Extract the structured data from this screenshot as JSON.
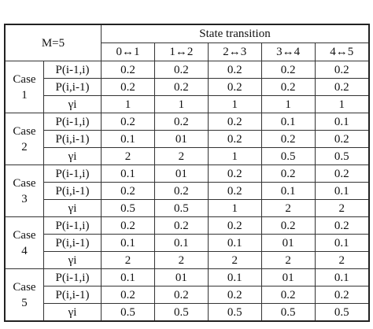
{
  "table": {
    "corner": "M=5",
    "group": "State transition",
    "columns": [
      "0↔1",
      "1↔2",
      "2↔3",
      "3↔4",
      "4↔5"
    ],
    "cases": [
      {
        "label": "Case 1",
        "rows": [
          {
            "label": "P(i-1,i)",
            "values": [
              "0.2",
              "0.2",
              "0.2",
              "0.2",
              "0.2"
            ]
          },
          {
            "label": "P(i,i-1)",
            "values": [
              "0.2",
              "0.2",
              "0.2",
              "0.2",
              "0.2"
            ]
          },
          {
            "label": "γi",
            "values": [
              "1",
              "1",
              "1",
              "1",
              "1"
            ]
          }
        ]
      },
      {
        "label": "Case 2",
        "rows": [
          {
            "label": "P(i-1,i)",
            "values": [
              "0.2",
              "0.2",
              "0.2",
              "0.1",
              "0.1"
            ]
          },
          {
            "label": "P(i,i-1)",
            "values": [
              "0.1",
              "01",
              "0.2",
              "0.2",
              "0.2"
            ]
          },
          {
            "label": "γi",
            "values": [
              "2",
              "2",
              "1",
              "0.5",
              "0.5"
            ]
          }
        ]
      },
      {
        "label": "Case 3",
        "rows": [
          {
            "label": "P(i-1,i)",
            "values": [
              "0.1",
              "01",
              "0.2",
              "0.2",
              "0.2"
            ]
          },
          {
            "label": "P(i,i-1)",
            "values": [
              "0.2",
              "0.2",
              "0.2",
              "0.1",
              "0.1"
            ]
          },
          {
            "label": "γi",
            "values": [
              "0.5",
              "0.5",
              "1",
              "2",
              "2"
            ]
          }
        ]
      },
      {
        "label": "Case 4",
        "rows": [
          {
            "label": "P(i-1,i)",
            "values": [
              "0.2",
              "0.2",
              "0.2",
              "0.2",
              "0.2"
            ]
          },
          {
            "label": "P(i,i-1)",
            "values": [
              "0.1",
              "0.1",
              "0.1",
              "01",
              "0.1"
            ]
          },
          {
            "label": "γi",
            "values": [
              "2",
              "2",
              "2",
              "2",
              "2"
            ]
          }
        ]
      },
      {
        "label": "Case 5",
        "rows": [
          {
            "label": "P(i-1,i)",
            "values": [
              "0.1",
              "01",
              "0.1",
              "01",
              "0.1"
            ]
          },
          {
            "label": "P(i,i-1)",
            "values": [
              "0.2",
              "0.2",
              "0.2",
              "0.2",
              "0.2"
            ]
          },
          {
            "label": "γi",
            "values": [
              "0.5",
              "0.5",
              "0.5",
              "0.5",
              "0.5"
            ]
          }
        ]
      }
    ]
  }
}
